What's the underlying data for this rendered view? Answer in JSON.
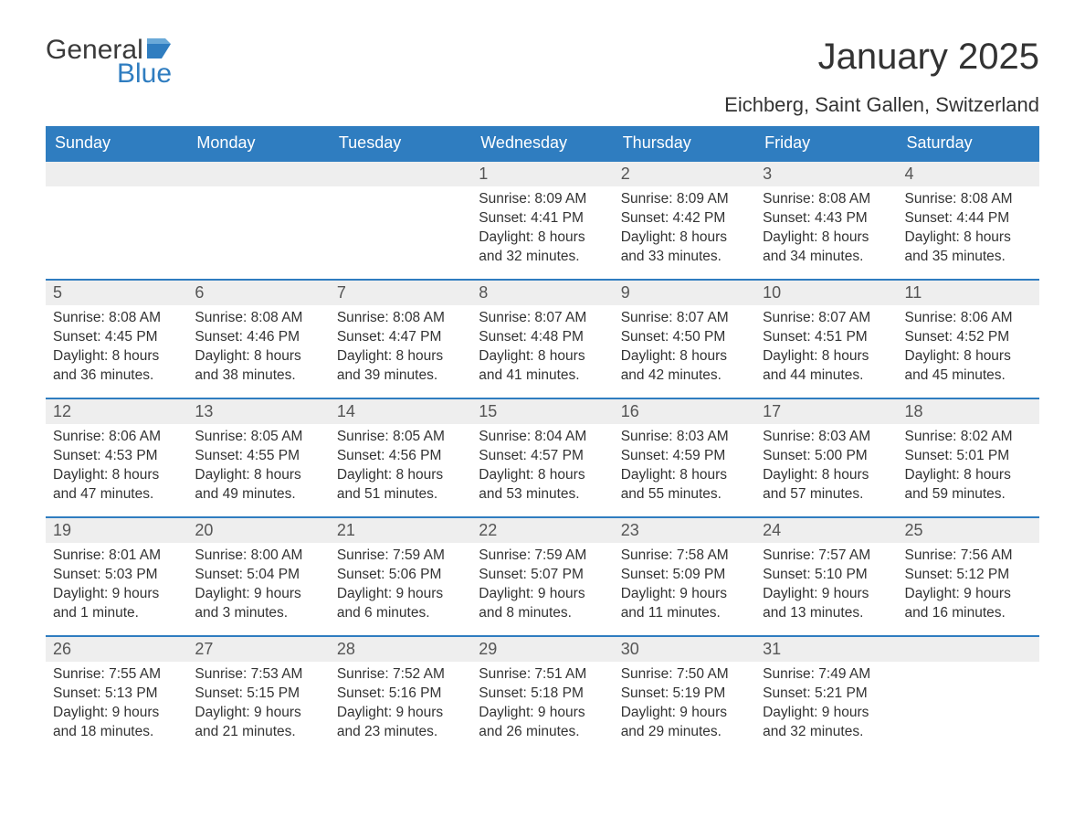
{
  "brand": {
    "general": "General",
    "blue": "Blue"
  },
  "title": "January 2025",
  "location": "Eichberg, Saint Gallen, Switzerland",
  "colors": {
    "accent": "#2f7dc0",
    "row_alt": "#eeeeee",
    "text": "#333333",
    "bg": "#ffffff"
  },
  "dow": [
    "Sunday",
    "Monday",
    "Tuesday",
    "Wednesday",
    "Thursday",
    "Friday",
    "Saturday"
  ],
  "weeks": [
    [
      null,
      null,
      null,
      {
        "n": "1",
        "sr": "Sunrise: 8:09 AM",
        "ss": "Sunset: 4:41 PM",
        "d1": "Daylight: 8 hours",
        "d2": "and 32 minutes."
      },
      {
        "n": "2",
        "sr": "Sunrise: 8:09 AM",
        "ss": "Sunset: 4:42 PM",
        "d1": "Daylight: 8 hours",
        "d2": "and 33 minutes."
      },
      {
        "n": "3",
        "sr": "Sunrise: 8:08 AM",
        "ss": "Sunset: 4:43 PM",
        "d1": "Daylight: 8 hours",
        "d2": "and 34 minutes."
      },
      {
        "n": "4",
        "sr": "Sunrise: 8:08 AM",
        "ss": "Sunset: 4:44 PM",
        "d1": "Daylight: 8 hours",
        "d2": "and 35 minutes."
      }
    ],
    [
      {
        "n": "5",
        "sr": "Sunrise: 8:08 AM",
        "ss": "Sunset: 4:45 PM",
        "d1": "Daylight: 8 hours",
        "d2": "and 36 minutes."
      },
      {
        "n": "6",
        "sr": "Sunrise: 8:08 AM",
        "ss": "Sunset: 4:46 PM",
        "d1": "Daylight: 8 hours",
        "d2": "and 38 minutes."
      },
      {
        "n": "7",
        "sr": "Sunrise: 8:08 AM",
        "ss": "Sunset: 4:47 PM",
        "d1": "Daylight: 8 hours",
        "d2": "and 39 minutes."
      },
      {
        "n": "8",
        "sr": "Sunrise: 8:07 AM",
        "ss": "Sunset: 4:48 PM",
        "d1": "Daylight: 8 hours",
        "d2": "and 41 minutes."
      },
      {
        "n": "9",
        "sr": "Sunrise: 8:07 AM",
        "ss": "Sunset: 4:50 PM",
        "d1": "Daylight: 8 hours",
        "d2": "and 42 minutes."
      },
      {
        "n": "10",
        "sr": "Sunrise: 8:07 AM",
        "ss": "Sunset: 4:51 PM",
        "d1": "Daylight: 8 hours",
        "d2": "and 44 minutes."
      },
      {
        "n": "11",
        "sr": "Sunrise: 8:06 AM",
        "ss": "Sunset: 4:52 PM",
        "d1": "Daylight: 8 hours",
        "d2": "and 45 minutes."
      }
    ],
    [
      {
        "n": "12",
        "sr": "Sunrise: 8:06 AM",
        "ss": "Sunset: 4:53 PM",
        "d1": "Daylight: 8 hours",
        "d2": "and 47 minutes."
      },
      {
        "n": "13",
        "sr": "Sunrise: 8:05 AM",
        "ss": "Sunset: 4:55 PM",
        "d1": "Daylight: 8 hours",
        "d2": "and 49 minutes."
      },
      {
        "n": "14",
        "sr": "Sunrise: 8:05 AM",
        "ss": "Sunset: 4:56 PM",
        "d1": "Daylight: 8 hours",
        "d2": "and 51 minutes."
      },
      {
        "n": "15",
        "sr": "Sunrise: 8:04 AM",
        "ss": "Sunset: 4:57 PM",
        "d1": "Daylight: 8 hours",
        "d2": "and 53 minutes."
      },
      {
        "n": "16",
        "sr": "Sunrise: 8:03 AM",
        "ss": "Sunset: 4:59 PM",
        "d1": "Daylight: 8 hours",
        "d2": "and 55 minutes."
      },
      {
        "n": "17",
        "sr": "Sunrise: 8:03 AM",
        "ss": "Sunset: 5:00 PM",
        "d1": "Daylight: 8 hours",
        "d2": "and 57 minutes."
      },
      {
        "n": "18",
        "sr": "Sunrise: 8:02 AM",
        "ss": "Sunset: 5:01 PM",
        "d1": "Daylight: 8 hours",
        "d2": "and 59 minutes."
      }
    ],
    [
      {
        "n": "19",
        "sr": "Sunrise: 8:01 AM",
        "ss": "Sunset: 5:03 PM",
        "d1": "Daylight: 9 hours",
        "d2": "and 1 minute."
      },
      {
        "n": "20",
        "sr": "Sunrise: 8:00 AM",
        "ss": "Sunset: 5:04 PM",
        "d1": "Daylight: 9 hours",
        "d2": "and 3 minutes."
      },
      {
        "n": "21",
        "sr": "Sunrise: 7:59 AM",
        "ss": "Sunset: 5:06 PM",
        "d1": "Daylight: 9 hours",
        "d2": "and 6 minutes."
      },
      {
        "n": "22",
        "sr": "Sunrise: 7:59 AM",
        "ss": "Sunset: 5:07 PM",
        "d1": "Daylight: 9 hours",
        "d2": "and 8 minutes."
      },
      {
        "n": "23",
        "sr": "Sunrise: 7:58 AM",
        "ss": "Sunset: 5:09 PM",
        "d1": "Daylight: 9 hours",
        "d2": "and 11 minutes."
      },
      {
        "n": "24",
        "sr": "Sunrise: 7:57 AM",
        "ss": "Sunset: 5:10 PM",
        "d1": "Daylight: 9 hours",
        "d2": "and 13 minutes."
      },
      {
        "n": "25",
        "sr": "Sunrise: 7:56 AM",
        "ss": "Sunset: 5:12 PM",
        "d1": "Daylight: 9 hours",
        "d2": "and 16 minutes."
      }
    ],
    [
      {
        "n": "26",
        "sr": "Sunrise: 7:55 AM",
        "ss": "Sunset: 5:13 PM",
        "d1": "Daylight: 9 hours",
        "d2": "and 18 minutes."
      },
      {
        "n": "27",
        "sr": "Sunrise: 7:53 AM",
        "ss": "Sunset: 5:15 PM",
        "d1": "Daylight: 9 hours",
        "d2": "and 21 minutes."
      },
      {
        "n": "28",
        "sr": "Sunrise: 7:52 AM",
        "ss": "Sunset: 5:16 PM",
        "d1": "Daylight: 9 hours",
        "d2": "and 23 minutes."
      },
      {
        "n": "29",
        "sr": "Sunrise: 7:51 AM",
        "ss": "Sunset: 5:18 PM",
        "d1": "Daylight: 9 hours",
        "d2": "and 26 minutes."
      },
      {
        "n": "30",
        "sr": "Sunrise: 7:50 AM",
        "ss": "Sunset: 5:19 PM",
        "d1": "Daylight: 9 hours",
        "d2": "and 29 minutes."
      },
      {
        "n": "31",
        "sr": "Sunrise: 7:49 AM",
        "ss": "Sunset: 5:21 PM",
        "d1": "Daylight: 9 hours",
        "d2": "and 32 minutes."
      },
      null
    ]
  ]
}
